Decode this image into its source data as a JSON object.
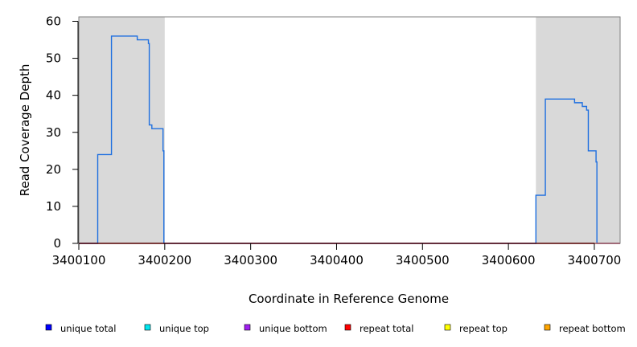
{
  "chart_data": {
    "type": "line",
    "xlabel": "Coordinate in Reference Genome",
    "ylabel": "Read Coverage Depth",
    "xlim": [
      3400100,
      3400730
    ],
    "ylim": [
      0,
      61
    ],
    "x_ticks": [
      3400100,
      3400200,
      3400300,
      3400400,
      3400500,
      3400600,
      3400700
    ],
    "x_tick_labels": [
      "3400100",
      "3400200",
      "3400300",
      "3400400",
      "3400500",
      "3400600",
      "3400700"
    ],
    "y_ticks": [
      0,
      10,
      20,
      30,
      40,
      50,
      60
    ],
    "y_tick_labels": [
      "0",
      "10",
      "20",
      "30",
      "40",
      "50",
      "60"
    ],
    "shaded_regions": [
      [
        3400100,
        3400200
      ],
      [
        3400632,
        3400730
      ]
    ],
    "shade_color": "#d9d9d9",
    "grid": false,
    "legend_position": "bottom",
    "legend": [
      {
        "label": "unique total",
        "color": "#0000ff"
      },
      {
        "label": "unique top",
        "color": "#00e5ee"
      },
      {
        "label": "unique bottom",
        "color": "#a020f0"
      },
      {
        "label": "repeat total",
        "color": "#ff0000"
      },
      {
        "label": "repeat top",
        "color": "#ffff00"
      },
      {
        "label": "repeat bottom",
        "color": "#ffa500"
      }
    ],
    "series": [
      {
        "color": "#1e6fe0",
        "step": true,
        "points": [
          [
            3400100,
            0
          ],
          [
            3400122,
            0
          ],
          [
            3400122,
            24
          ],
          [
            3400138,
            24
          ],
          [
            3400138,
            56
          ],
          [
            3400168,
            56
          ],
          [
            3400168,
            55
          ],
          [
            3400181,
            55
          ],
          [
            3400181,
            54
          ],
          [
            3400182,
            54
          ],
          [
            3400182,
            32
          ],
          [
            3400185,
            32
          ],
          [
            3400185,
            31
          ],
          [
            3400198,
            31
          ],
          [
            3400198,
            25
          ],
          [
            3400199,
            25
          ],
          [
            3400199,
            0
          ],
          [
            3400632,
            0
          ],
          [
            3400632,
            13
          ],
          [
            3400643,
            13
          ],
          [
            3400643,
            39
          ],
          [
            3400677,
            39
          ],
          [
            3400677,
            38
          ],
          [
            3400686,
            38
          ],
          [
            3400686,
            37
          ],
          [
            3400691,
            37
          ],
          [
            3400691,
            36
          ],
          [
            3400693,
            36
          ],
          [
            3400693,
            25
          ],
          [
            3400702,
            25
          ],
          [
            3400702,
            22
          ],
          [
            3400703,
            22
          ],
          [
            3400703,
            0
          ],
          [
            3400730,
            0
          ]
        ]
      },
      {
        "color": "#ff0000",
        "step": true,
        "points": [
          [
            3400100,
            0
          ],
          [
            3400730,
            0
          ]
        ]
      }
    ]
  }
}
